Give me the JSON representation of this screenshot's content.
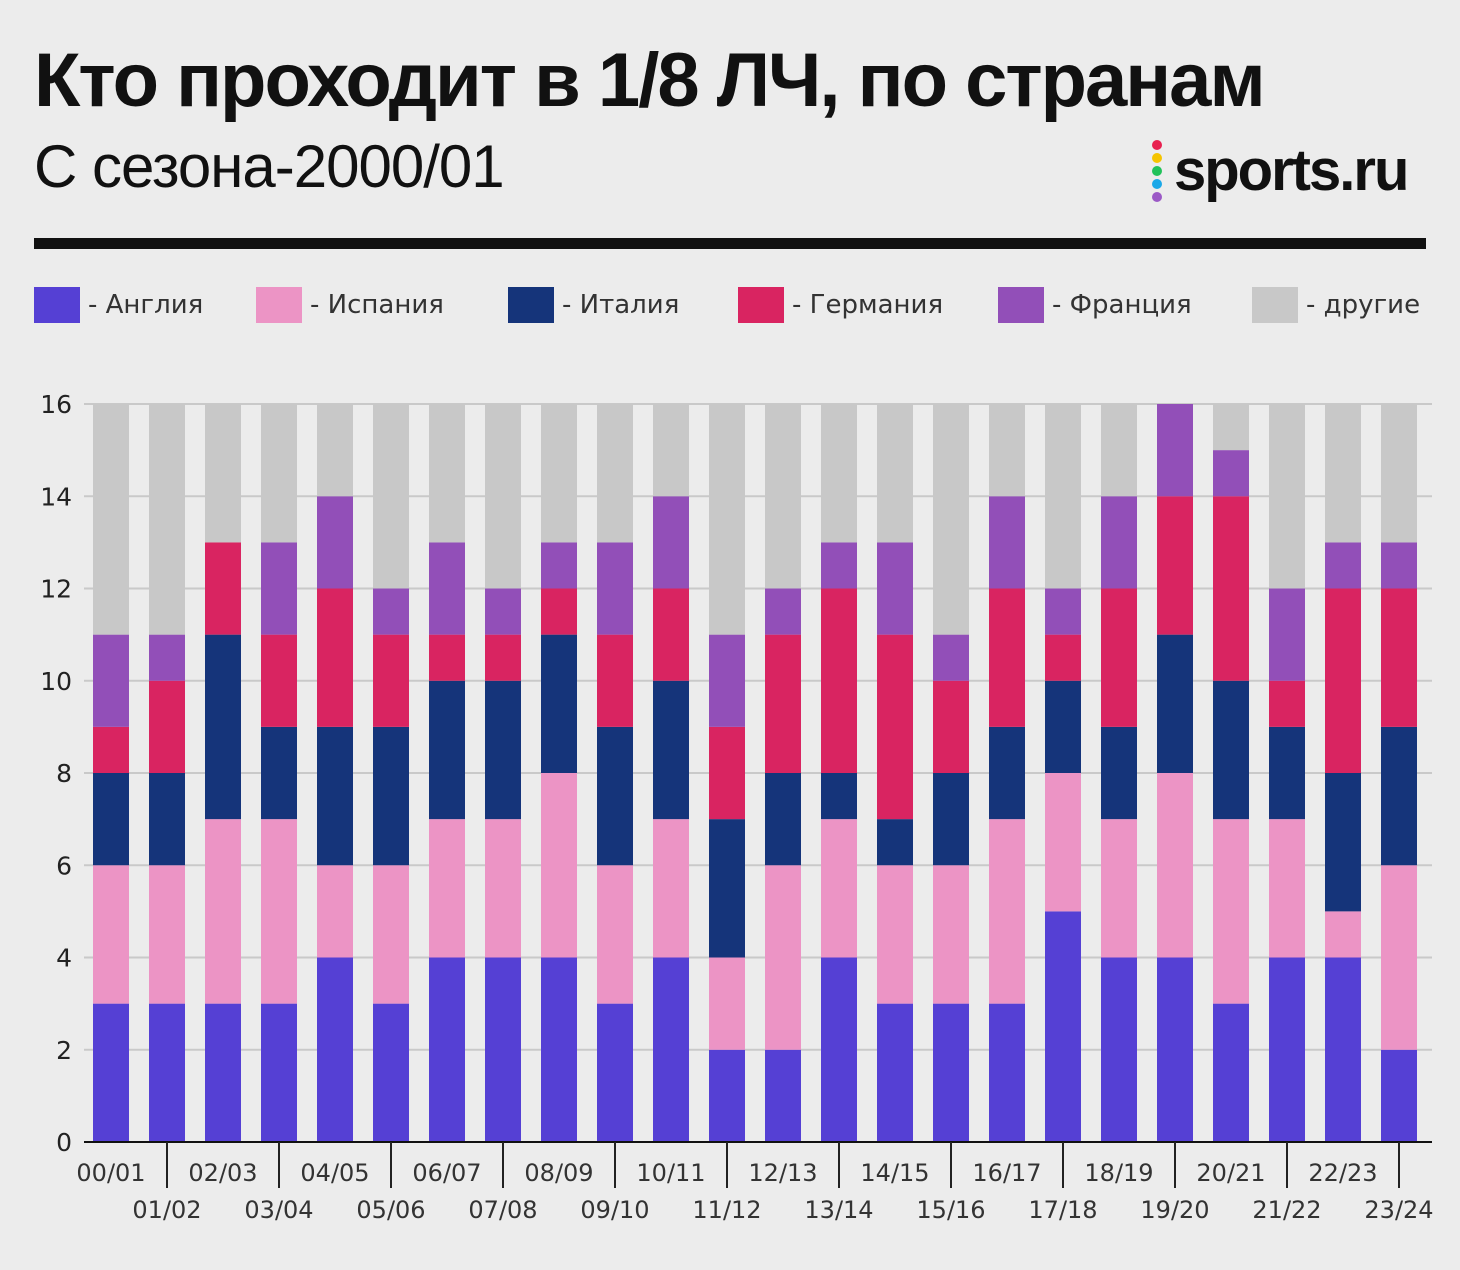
{
  "header": {
    "title": "Кто проходит в 1/8 ЛЧ, по странам",
    "subtitle": "С сезона-2000/01",
    "logo_text": "sports.ru",
    "logo_dot_colors": [
      "#e8204f",
      "#f5c400",
      "#21c25a",
      "#1aa8e8",
      "#9b59c6"
    ]
  },
  "legend": [
    {
      "label": "- Англия",
      "color": "#5540d4"
    },
    {
      "label": "- Испания",
      "color": "#ec94c5"
    },
    {
      "label": "- Италия",
      "color": "#15347a"
    },
    {
      "label": "- Германия",
      "color": "#d92461"
    },
    {
      "label": "- Франция",
      "color": "#924fb8"
    },
    {
      "label": "- другие",
      "color": "#c8c8c8"
    }
  ],
  "chart_data": {
    "type": "bar",
    "stacked": true,
    "ylim": [
      0,
      16
    ],
    "yticks": [
      0,
      2,
      4,
      6,
      8,
      10,
      12,
      14,
      16
    ],
    "grid": true,
    "categories": [
      "00/01",
      "01/02",
      "02/03",
      "03/04",
      "04/05",
      "05/06",
      "06/07",
      "07/08",
      "08/09",
      "09/10",
      "10/11",
      "11/12",
      "12/13",
      "13/14",
      "14/15",
      "15/16",
      "16/17",
      "17/18",
      "18/19",
      "19/20",
      "20/21",
      "21/22",
      "22/23",
      "23/24"
    ],
    "series": [
      {
        "name": "Англия",
        "color": "#5540d4",
        "values": [
          3,
          3,
          3,
          3,
          4,
          3,
          4,
          4,
          4,
          3,
          4,
          2,
          2,
          4,
          3,
          3,
          3,
          5,
          4,
          4,
          3,
          4,
          4,
          2
        ]
      },
      {
        "name": "Испания",
        "color": "#ec94c5",
        "values": [
          3,
          3,
          4,
          4,
          2,
          3,
          3,
          3,
          4,
          3,
          3,
          2,
          4,
          3,
          3,
          3,
          4,
          3,
          3,
          4,
          4,
          3,
          1,
          4
        ]
      },
      {
        "name": "Италия",
        "color": "#15347a",
        "values": [
          2,
          2,
          4,
          2,
          3,
          3,
          3,
          3,
          3,
          3,
          3,
          3,
          2,
          1,
          1,
          2,
          2,
          2,
          2,
          3,
          3,
          2,
          3,
          3
        ]
      },
      {
        "name": "Германия",
        "color": "#d92461",
        "values": [
          1,
          2,
          2,
          2,
          3,
          2,
          1,
          1,
          1,
          2,
          2,
          2,
          3,
          4,
          4,
          2,
          3,
          1,
          3,
          3,
          4,
          1,
          4,
          3
        ]
      },
      {
        "name": "Франция",
        "color": "#924fb8",
        "values": [
          2,
          1,
          0,
          2,
          2,
          1,
          2,
          1,
          1,
          2,
          2,
          2,
          1,
          1,
          2,
          1,
          2,
          1,
          2,
          2,
          1,
          2,
          1,
          1
        ]
      },
      {
        "name": "другие",
        "color": "#c8c8c8",
        "values": [
          5,
          5,
          3,
          3,
          2,
          4,
          3,
          4,
          3,
          3,
          2,
          5,
          4,
          3,
          3,
          5,
          2,
          4,
          2,
          0,
          1,
          4,
          3,
          3
        ]
      }
    ]
  }
}
